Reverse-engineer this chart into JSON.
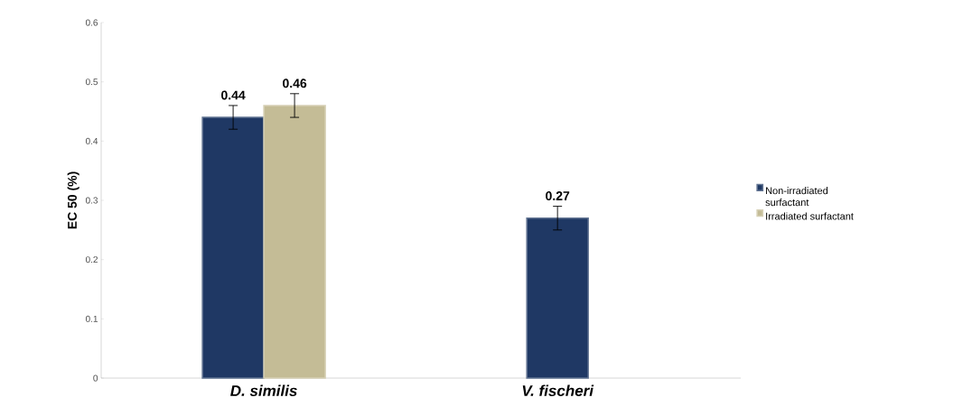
{
  "chart_data": {
    "type": "bar",
    "ylabel": "EC 50 (%)",
    "categories": [
      "D. similis",
      "V. fischeri"
    ],
    "series": [
      {
        "name": "Non-irradiated surfactant",
        "color": "#1f3864",
        "values": [
          0.44,
          0.27
        ],
        "errors": [
          0.02,
          0.02
        ]
      },
      {
        "name": "Irradiated surfactant",
        "color": "#c4bc96",
        "values": [
          0.46,
          null
        ],
        "errors": [
          0.02,
          null
        ]
      }
    ],
    "ylim": [
      0,
      0.6
    ],
    "yticks": [
      0,
      0.1,
      0.2,
      0.3,
      0.4,
      0.5,
      0.6
    ],
    "data_labels": true,
    "grid": false,
    "legend": "right"
  }
}
